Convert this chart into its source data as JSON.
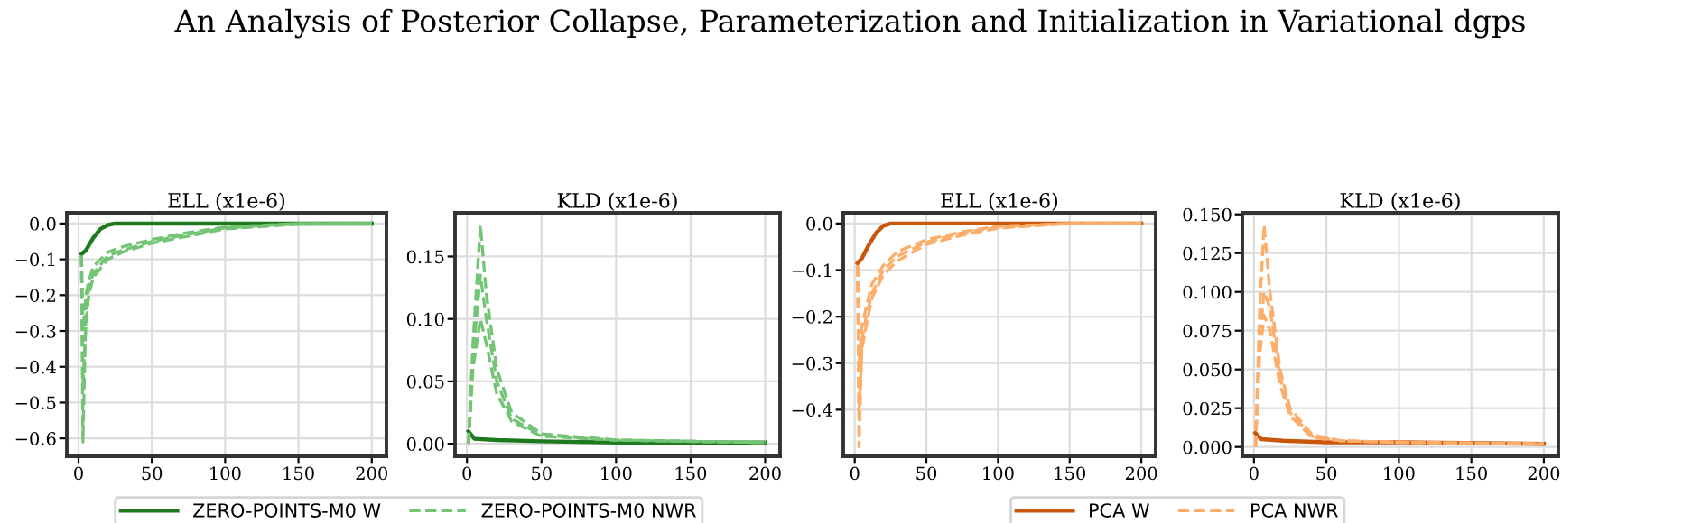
{
  "chart_data": [
    {
      "type": "line",
      "title": "ELL (x1e-6)",
      "annotations": [
        "An Analysis of Posterior Collapse, Parameterization and Initialization in Variational dgps"
      ],
      "xlim": [
        -8,
        210
      ],
      "xticks": [
        0,
        50,
        100,
        150,
        200
      ],
      "ylim": [
        -0.65,
        0.03
      ],
      "yticks": [
        {
          "value": 0,
          "label": "0.0"
        },
        {
          "value": -0.1,
          "label": "−0.1"
        },
        {
          "value": -0.2,
          "label": "−0.2"
        },
        {
          "value": -0.3,
          "label": "−0.3"
        },
        {
          "value": -0.4,
          "label": "−0.4"
        },
        {
          "value": -0.5,
          "label": "−0.5"
        },
        {
          "value": -0.6,
          "label": "−0.6"
        }
      ],
      "grid": true,
      "legend": "bottom",
      "series": [
        {
          "name": "ZERO-POINTS-M0 W",
          "color": "#1f7a1f",
          "line_style": "solid",
          "x": [
            2,
            5,
            10,
            15,
            20,
            25,
            200
          ],
          "values": [
            -0.085,
            -0.075,
            -0.04,
            -0.015,
            -0.004,
            0,
            0
          ]
        },
        {
          "name": "ZERO-POINTS-M0 NWR",
          "color": "#74c476",
          "line_style": "dashed",
          "x": [
            2,
            3,
            5,
            7,
            10,
            20,
            30,
            50,
            75,
            100,
            150,
            200
          ],
          "values": [
            -0.09,
            -0.61,
            -0.25,
            -0.18,
            -0.14,
            -0.09,
            -0.075,
            -0.05,
            -0.03,
            -0.012,
            0,
            0
          ]
        },
        {
          "color": "#74c476",
          "line_style": "dashed",
          "x": [
            2,
            3,
            5,
            7,
            10,
            20,
            30,
            50,
            75,
            100,
            150,
            200
          ],
          "values": [
            -0.09,
            -0.45,
            -0.28,
            -0.2,
            -0.15,
            -0.1,
            -0.08,
            -0.055,
            -0.035,
            -0.015,
            -0.002,
            0
          ]
        },
        {
          "color": "#74c476",
          "line_style": "dashed",
          "x": [
            2,
            3,
            5,
            7,
            10,
            20,
            30,
            50,
            75,
            100,
            150,
            200
          ],
          "values": [
            -0.09,
            -0.3,
            -0.2,
            -0.16,
            -0.12,
            -0.08,
            -0.065,
            -0.045,
            -0.025,
            -0.01,
            0,
            0
          ]
        }
      ]
    },
    {
      "type": "line",
      "title": "KLD (x1e-6)",
      "xlim": [
        -8,
        210
      ],
      "xticks": [
        0,
        50,
        100,
        150,
        200
      ],
      "ylim": [
        -0.01,
        0.185
      ],
      "yticks": [
        {
          "value": 0,
          "label": "0.00"
        },
        {
          "value": 0.05,
          "label": "0.05"
        },
        {
          "value": 0.1,
          "label": "0.10"
        },
        {
          "value": 0.15,
          "label": "0.15"
        }
      ],
      "grid": true,
      "series": [
        {
          "color": "#1f7a1f",
          "line_style": "solid",
          "x": [
            1,
            5,
            20,
            50,
            100,
            200
          ],
          "values": [
            0.01,
            0.004,
            0.003,
            0.002,
            0.001,
            0.001
          ]
        },
        {
          "color": "#74c476",
          "line_style": "dashed",
          "x": [
            1,
            4,
            9,
            13,
            20,
            30,
            50,
            100,
            200
          ],
          "values": [
            0.0,
            0.08,
            0.175,
            0.12,
            0.06,
            0.025,
            0.008,
            0.003,
            0.001
          ]
        },
        {
          "color": "#74c476",
          "line_style": "dashed",
          "x": [
            1,
            4,
            9,
            13,
            20,
            30,
            50,
            100,
            200
          ],
          "values": [
            0.0,
            0.07,
            0.135,
            0.1,
            0.05,
            0.02,
            0.007,
            0.003,
            0.001
          ]
        },
        {
          "color": "#74c476",
          "line_style": "dashed",
          "x": [
            1,
            4,
            9,
            13,
            20,
            30,
            50,
            100,
            200
          ],
          "values": [
            0.0,
            0.06,
            0.1,
            0.08,
            0.04,
            0.018,
            0.006,
            0.003,
            0.001
          ]
        }
      ]
    },
    {
      "type": "line",
      "title": "ELL (x1e-6)",
      "xlim": [
        -8,
        210
      ],
      "xticks": [
        0,
        50,
        100,
        150,
        200
      ],
      "ylim": [
        -0.5,
        0.023
      ],
      "yticks": [
        {
          "value": 0,
          "label": "0.0"
        },
        {
          "value": -0.1,
          "label": "−0.1"
        },
        {
          "value": -0.2,
          "label": "−0.2"
        },
        {
          "value": -0.3,
          "label": "−0.3"
        },
        {
          "value": -0.4,
          "label": "−0.4"
        }
      ],
      "grid": true,
      "legend": "bottom",
      "series": [
        {
          "name": "PCA W",
          "color": "#c8570c",
          "line_style": "solid",
          "x": [
            2,
            5,
            10,
            15,
            20,
            25,
            200
          ],
          "values": [
            -0.085,
            -0.075,
            -0.045,
            -0.02,
            -0.005,
            0,
            0
          ]
        },
        {
          "name": "PCA NWR",
          "color": "#fdae6b",
          "line_style": "dashed",
          "x": [
            2,
            3,
            5,
            8,
            12,
            20,
            30,
            50,
            75,
            100,
            150,
            200
          ],
          "values": [
            -0.09,
            -0.48,
            -0.25,
            -0.2,
            -0.15,
            -0.1,
            -0.07,
            -0.04,
            -0.02,
            -0.008,
            0,
            0
          ]
        },
        {
          "color": "#fdae6b",
          "line_style": "dashed",
          "x": [
            2,
            3,
            5,
            8,
            12,
            20,
            30,
            50,
            75,
            100,
            150,
            200
          ],
          "values": [
            -0.09,
            -0.4,
            -0.27,
            -0.22,
            -0.16,
            -0.11,
            -0.08,
            -0.045,
            -0.025,
            -0.01,
            0,
            0
          ]
        },
        {
          "color": "#fdae6b",
          "line_style": "dashed",
          "x": [
            2,
            3,
            5,
            8,
            12,
            20,
            30,
            50,
            75,
            100,
            150,
            200
          ],
          "values": [
            -0.09,
            -0.3,
            -0.22,
            -0.18,
            -0.13,
            -0.09,
            -0.06,
            -0.035,
            -0.018,
            -0.006,
            0,
            0
          ]
        }
      ]
    },
    {
      "type": "line",
      "title": "KLD (x1e-6)",
      "xlim": [
        -8,
        210
      ],
      "xticks": [
        0,
        50,
        100,
        150,
        200
      ],
      "ylim": [
        -0.006,
        0.151
      ],
      "yticks": [
        {
          "value": 0,
          "label": "0.000"
        },
        {
          "value": 0.025,
          "label": "0.025"
        },
        {
          "value": 0.05,
          "label": "0.050"
        },
        {
          "value": 0.075,
          "label": "0.075"
        },
        {
          "value": 0.1,
          "label": "0.100"
        },
        {
          "value": 0.125,
          "label": "0.125"
        },
        {
          "value": 0.15,
          "label": "0.150"
        }
      ],
      "grid": true,
      "series": [
        {
          "color": "#c8570c",
          "line_style": "solid",
          "x": [
            1,
            5,
            20,
            50,
            100,
            200
          ],
          "values": [
            0.009,
            0.005,
            0.004,
            0.003,
            0.003,
            0.002
          ]
        },
        {
          "color": "#fdae6b",
          "line_style": "dashed",
          "x": [
            1,
            4,
            7,
            11,
            18,
            25,
            40,
            60,
            100,
            200
          ],
          "values": [
            0.0,
            0.09,
            0.143,
            0.1,
            0.05,
            0.025,
            0.008,
            0.004,
            0.003,
            0.002
          ]
        },
        {
          "color": "#fdae6b",
          "line_style": "dashed",
          "x": [
            1,
            4,
            7,
            11,
            18,
            25,
            40,
            60,
            100,
            200
          ],
          "values": [
            0.0,
            0.07,
            0.1,
            0.09,
            0.045,
            0.022,
            0.007,
            0.004,
            0.003,
            0.002
          ]
        },
        {
          "color": "#fdae6b",
          "line_style": "dashed",
          "x": [
            1,
            4,
            7,
            11,
            18,
            25,
            40,
            60,
            100,
            200
          ],
          "values": [
            0.0,
            0.06,
            0.085,
            0.075,
            0.04,
            0.02,
            0.006,
            0.004,
            0.003,
            0.002
          ]
        }
      ]
    }
  ]
}
